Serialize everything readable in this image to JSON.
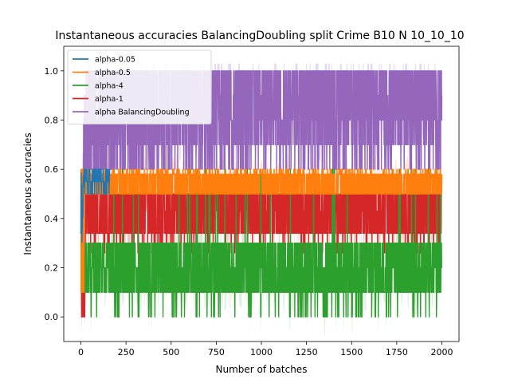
{
  "chart_data": {
    "type": "line",
    "title": "Instantaneous accuracies BalancingDoubling split Crime B10 N 10_10_10",
    "xlabel": "Number of batches",
    "ylabel": "Instantaneous accuracies",
    "xlim": [
      -95,
      2095
    ],
    "ylim": [
      -0.1,
      1.1
    ],
    "x_ticks": [
      0,
      250,
      500,
      750,
      1000,
      1250,
      1500,
      1750,
      2000
    ],
    "x_tick_labels": [
      "0",
      "250",
      "500",
      "750",
      "1000",
      "1250",
      "1500",
      "1750",
      "2000"
    ],
    "y_ticks": [
      0.0,
      0.2,
      0.4,
      0.6,
      0.8,
      1.0
    ],
    "y_tick_labels": [
      "0.0",
      "0.2",
      "0.4",
      "0.6",
      "0.8",
      "1.0"
    ],
    "grid": false,
    "legend_position": "top-left",
    "n_batches": 2000,
    "series": [
      {
        "name": "alpha-0.05",
        "color": "#1f77b4",
        "levels": [
          0.5,
          0.55,
          0.6
        ],
        "active_until": 160,
        "approx_mean": 0.56,
        "band": [
          0.5,
          0.65
        ]
      },
      {
        "name": "alpha-0.5",
        "color": "#ff7f0e",
        "levels": [
          0.5,
          0.58,
          0.6
        ],
        "approx_mean": 0.56,
        "band": [
          0.5,
          0.6
        ],
        "min_value": -0.05
      },
      {
        "name": "alpha-4",
        "color": "#2ca02c",
        "levels": [
          0.0,
          0.1,
          0.2,
          0.3
        ],
        "approx_mean": 0.22,
        "band": [
          0.1,
          0.3
        ],
        "spikes": [
          0.0,
          0.6
        ]
      },
      {
        "name": "alpha-1",
        "color": "#d62728",
        "levels": [
          0.0,
          0.1,
          0.26,
          0.34,
          0.43,
          0.5
        ],
        "approx_mean": 0.42,
        "band": [
          0.34,
          0.5
        ]
      },
      {
        "name": "alpha BalancingDoubling",
        "color": "#9467bd",
        "levels": [
          0.6,
          0.7,
          0.8,
          0.9,
          1.0
        ],
        "approx_mean": 0.88,
        "band": [
          0.6,
          1.0
        ],
        "ramp": [
          [
            0,
            0.25
          ],
          [
            60,
            0.75
          ],
          [
            120,
            0.8
          ],
          [
            300,
            0.84
          ],
          [
            700,
            0.88
          ],
          [
            2000,
            0.9
          ]
        ]
      }
    ]
  }
}
